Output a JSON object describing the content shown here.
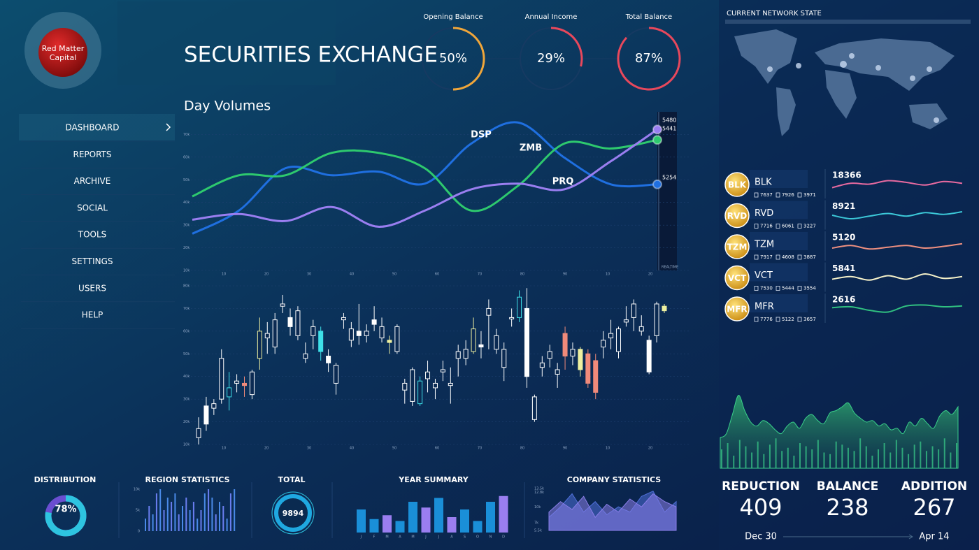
{
  "logo": {
    "line1": "Red Matter",
    "line2": "Capital"
  },
  "title": "SECURITIES EXCHANGE",
  "gauges": [
    {
      "label": "Opening Balance",
      "value": 50,
      "value_label": "50%",
      "color": "#f0a63a"
    },
    {
      "label": "Annual Income",
      "value": 29,
      "value_label": "29%",
      "color": "#e8485c"
    },
    {
      "label": "Total Balance",
      "value": 87,
      "value_label": "87%",
      "color": "#e8485c"
    }
  ],
  "nav": [
    "DASHBOARD",
    "REPORTS",
    "ARCHIVE",
    "SOCIAL",
    "TOOLS",
    "SETTINGS",
    "USERS",
    "HELP"
  ],
  "day_volumes": {
    "title": "Day Volumes",
    "ylim": [
      10,
      80
    ],
    "yticks": [
      {
        "value": 10,
        "label": "10k"
      },
      {
        "value": 20,
        "label": "20k"
      },
      {
        "value": 30,
        "label": "30k"
      },
      {
        "value": 40,
        "label": "40k"
      },
      {
        "value": 50,
        "label": "50k"
      },
      {
        "value": 60,
        "label": "60k"
      },
      {
        "value": 70,
        "label": "70k"
      }
    ],
    "x_labels": [
      "10",
      "20",
      "30",
      "40",
      "50",
      "60",
      "70",
      "80",
      "90",
      "10",
      "20"
    ],
    "series": [
      {
        "name": "DSP",
        "color": "#1f6fe0",
        "values": [
          26.2,
          36.4,
          55.1,
          52.0,
          53.6,
          48.3,
          66.0,
          75.3,
          59.8,
          48.0,
          48.0
        ]
      },
      {
        "name": "ZMB",
        "color": "#2ec96e",
        "values": [
          42.7,
          52.0,
          52.0,
          61.9,
          61.9,
          55.1,
          36.4,
          47.3,
          66.0,
          63.8,
          67.6
        ]
      },
      {
        "name": "PRQ",
        "color": "#9a7ef0",
        "values": [
          32.4,
          34.9,
          31.8,
          38.0,
          29.3,
          36.4,
          45.8,
          48.3,
          45.8,
          58.2,
          72.2
        ]
      }
    ],
    "readouts": [
      5480,
      5441,
      5254
    ],
    "realtime": "REALTIME"
  },
  "candles": {
    "ylim": [
      10,
      80
    ],
    "yticks": [
      {
        "value": 10,
        "label": "10k"
      },
      {
        "value": 20,
        "label": "20k"
      },
      {
        "value": 30,
        "label": "30k"
      },
      {
        "value": 40,
        "label": "40k"
      },
      {
        "value": 50,
        "label": "50k"
      },
      {
        "value": 60,
        "label": "60k"
      },
      {
        "value": 70,
        "label": "70k"
      },
      {
        "value": 80,
        "label": "80k"
      }
    ],
    "open": [
      13,
      27,
      26,
      30,
      31,
      37,
      37,
      32,
      48,
      57,
      53,
      71,
      66,
      58,
      48,
      58,
      60,
      49,
      37,
      65,
      56,
      60,
      58,
      65,
      57,
      56,
      51,
      34,
      29,
      28,
      39,
      35,
      42,
      36,
      48,
      48,
      51,
      54,
      67,
      52,
      44,
      66,
      66,
      70,
      21,
      44,
      48,
      41,
      59,
      49,
      52,
      50,
      47,
      53,
      57,
      51,
      64,
      66,
      60,
      56,
      58,
      71
    ],
    "high": [
      22,
      31,
      30,
      52,
      42,
      41,
      40,
      43,
      66,
      64,
      68,
      76,
      70,
      71,
      55,
      65,
      62,
      52,
      46,
      68,
      64,
      72,
      63,
      71,
      66,
      58,
      63,
      39,
      44,
      40,
      47,
      39,
      47,
      44,
      54,
      56,
      66,
      60,
      74,
      61,
      55,
      70,
      78,
      79,
      32,
      49,
      54,
      46,
      62,
      55,
      53,
      52,
      50,
      60,
      65,
      62,
      71,
      74,
      67,
      58,
      73,
      72
    ],
    "low": [
      10,
      16,
      23,
      28,
      25,
      33,
      31,
      30,
      43,
      50,
      50,
      68,
      58,
      56,
      46,
      52,
      47,
      42,
      32,
      61,
      53,
      54,
      55,
      60,
      55,
      50,
      50,
      28,
      27,
      27,
      33,
      30,
      38,
      28,
      40,
      45,
      50,
      48,
      52,
      50,
      38,
      62,
      64,
      35,
      20,
      40,
      44,
      35,
      43,
      45,
      40,
      35,
      30,
      48,
      52,
      48,
      62,
      60,
      58,
      41,
      55,
      68
    ],
    "close": [
      17,
      19,
      28,
      48,
      35,
      38,
      36,
      42,
      60,
      59,
      65,
      72,
      62,
      69,
      50,
      62,
      51,
      46,
      45,
      66,
      61,
      58,
      60,
      63,
      62,
      55,
      62,
      37,
      43,
      38,
      42,
      37,
      43,
      37,
      51,
      52,
      61,
      53,
      70,
      58,
      52,
      66,
      75,
      40,
      31,
      46,
      51,
      43,
      49,
      52,
      43,
      37,
      33,
      56,
      59,
      61,
      65,
      72,
      62,
      42,
      72,
      69
    ],
    "color": [
      "#ffffff",
      "#ffffff",
      "#ffffff",
      "#ffffff",
      "#3ee0e8",
      "#ffffff",
      "#f08a7a",
      "#ffffff",
      "#eef0a0",
      "#ffffff",
      "#ffffff",
      "#ffffff",
      "#ffffff",
      "#ffffff",
      "#ffffff",
      "#ffffff",
      "#3ee0e8",
      "#ffffff",
      "#ffffff",
      "#ffffff",
      "#ffffff",
      "#ffffff",
      "#ffffff",
      "#ffffff",
      "#ffffff",
      "#eef0a0",
      "#ffffff",
      "#ffffff",
      "#ffffff",
      "#3ee0e8",
      "#ffffff",
      "#ffffff",
      "#ffffff",
      "#ffffff",
      "#ffffff",
      "#ffffff",
      "#eef0a0",
      "#ffffff",
      "#ffffff",
      "#ffffff",
      "#ffffff",
      "#ffffff",
      "#3ee0e8",
      "#ffffff",
      "#ffffff",
      "#ffffff",
      "#ffffff",
      "#ffffff",
      "#f08a7a",
      "#ffffff",
      "#eef0a0",
      "#f08a7a",
      "#f08a7a",
      "#ffffff",
      "#ffffff",
      "#ffffff",
      "#ffffff",
      "#ffffff",
      "#ffffff",
      "#ffffff",
      "#ffffff",
      "#eef0a0"
    ]
  },
  "network": {
    "title": "CURRENT NETWORK STATE"
  },
  "tickers": [
    {
      "symbol": "BLK",
      "stats": [
        7637,
        7926,
        3971
      ],
      "value": 18366,
      "color": "#e86aa0",
      "spark": [
        30,
        55,
        50,
        70,
        60,
        45,
        65,
        55
      ]
    },
    {
      "symbol": "RVD",
      "stats": [
        7716,
        6061,
        3227
      ],
      "value": 8921,
      "color": "#3cc8d8",
      "spark": [
        50,
        30,
        45,
        60,
        45,
        65,
        55,
        70
      ]
    },
    {
      "symbol": "TZM",
      "stats": [
        7917,
        4608,
        3887
      ],
      "value": 5120,
      "color": "#f09080",
      "spark": [
        40,
        55,
        35,
        45,
        55,
        40,
        50,
        65
      ]
    },
    {
      "symbol": "VCT",
      "stats": [
        7530,
        5444,
        3554
      ],
      "value": 5841,
      "color": "#f4f0c8",
      "spark": [
        40,
        55,
        35,
        60,
        40,
        70,
        45,
        55
      ]
    },
    {
      "symbol": "MFR",
      "stats": [
        7776,
        5122,
        3657
      ],
      "value": 2616,
      "color": "#30c080",
      "spark": [
        55,
        60,
        40,
        30,
        65,
        70,
        60,
        65
      ]
    }
  ],
  "activity": {
    "area": [
      40,
      45,
      70,
      95,
      75,
      60,
      55,
      62,
      58,
      50,
      45,
      55,
      60,
      52,
      65,
      70,
      62,
      58,
      72,
      75,
      80,
      85,
      72,
      65,
      60,
      62,
      55,
      58,
      50,
      52,
      45,
      60,
      55,
      65,
      58,
      52,
      68,
      75,
      70,
      80
    ],
    "bars": [
      60,
      80,
      40,
      90,
      70,
      50,
      85,
      45,
      75,
      95,
      55,
      65,
      40,
      80,
      70,
      60,
      90,
      50,
      45,
      85,
      75,
      65,
      55,
      95,
      70,
      40,
      60,
      80,
      50,
      90,
      65,
      45,
      75,
      85,
      55,
      70,
      60,
      95,
      50,
      80
    ]
  },
  "totals": [
    {
      "label": "REDUCTION",
      "value": 409,
      "color": "#2ec4c4"
    },
    {
      "label": "BALANCE",
      "value": 238,
      "color": "#f4efc0"
    },
    {
      "label": "ADDITION",
      "value": 267,
      "color": "#f0707c"
    }
  ],
  "date_range": [
    "Dec 30",
    "Apr 14"
  ],
  "distribution": {
    "title": "DISTRIBUTION",
    "value": 78,
    "value_label": "78%"
  },
  "region_statistics": {
    "title": "REGION STATISTICS",
    "ylim": [
      0,
      10
    ],
    "yticks": [
      0,
      {
        "value": 5,
        "label": "5k"
      },
      {
        "value": 10,
        "label": "10k"
      }
    ],
    "values": [
      3,
      6,
      4,
      9,
      10,
      5,
      8,
      7,
      9,
      4,
      6,
      8,
      5,
      7,
      3,
      5,
      9,
      10,
      8,
      4,
      7,
      6,
      3,
      9,
      10
    ]
  },
  "total": {
    "title": "TOTAL",
    "value": 9894
  },
  "year_summary": {
    "title": "YEAR SUMMARY",
    "categories": [
      "J",
      "F",
      "M",
      "A",
      "M",
      "J",
      "J",
      "A",
      "S",
      "O",
      "N",
      "D"
    ],
    "values": [
      6,
      3.5,
      4.5,
      3,
      8,
      6.5,
      9,
      4,
      6,
      3,
      8,
      9.5
    ],
    "colors": [
      "#1a8fd8",
      "#1a8fd8",
      "#9a7ef0",
      "#1a8fd8",
      "#1a8fd8",
      "#9a7ef0",
      "#1a8fd8",
      "#9a7ef0",
      "#1a8fd8",
      "#1a8fd8",
      "#1a8fd8",
      "#9a7ef0"
    ]
  },
  "company_statistics": {
    "title": "COMPANY STATISTICS",
    "ylim": [
      5.5,
      13.5
    ],
    "yticks": [
      {
        "value": 5.5,
        "label": "5.5k"
      },
      {
        "value": 7,
        "label": "7k"
      },
      {
        "value": 10,
        "label": "10k"
      },
      {
        "value": 12.8,
        "label": "12.8k"
      },
      {
        "value": 13.5,
        "label": "13.5k"
      }
    ],
    "series": [
      {
        "color": "#4f6fd8",
        "values": [
          8,
          10,
          12.5,
          9,
          11,
          8.5,
          10,
          9,
          12,
          13,
          9,
          11
        ]
      },
      {
        "color": "#8a7ee8",
        "values": [
          9,
          11,
          9.5,
          12,
          8,
          10.5,
          9,
          11.5,
          10,
          12.5,
          11,
          10
        ]
      }
    ]
  }
}
